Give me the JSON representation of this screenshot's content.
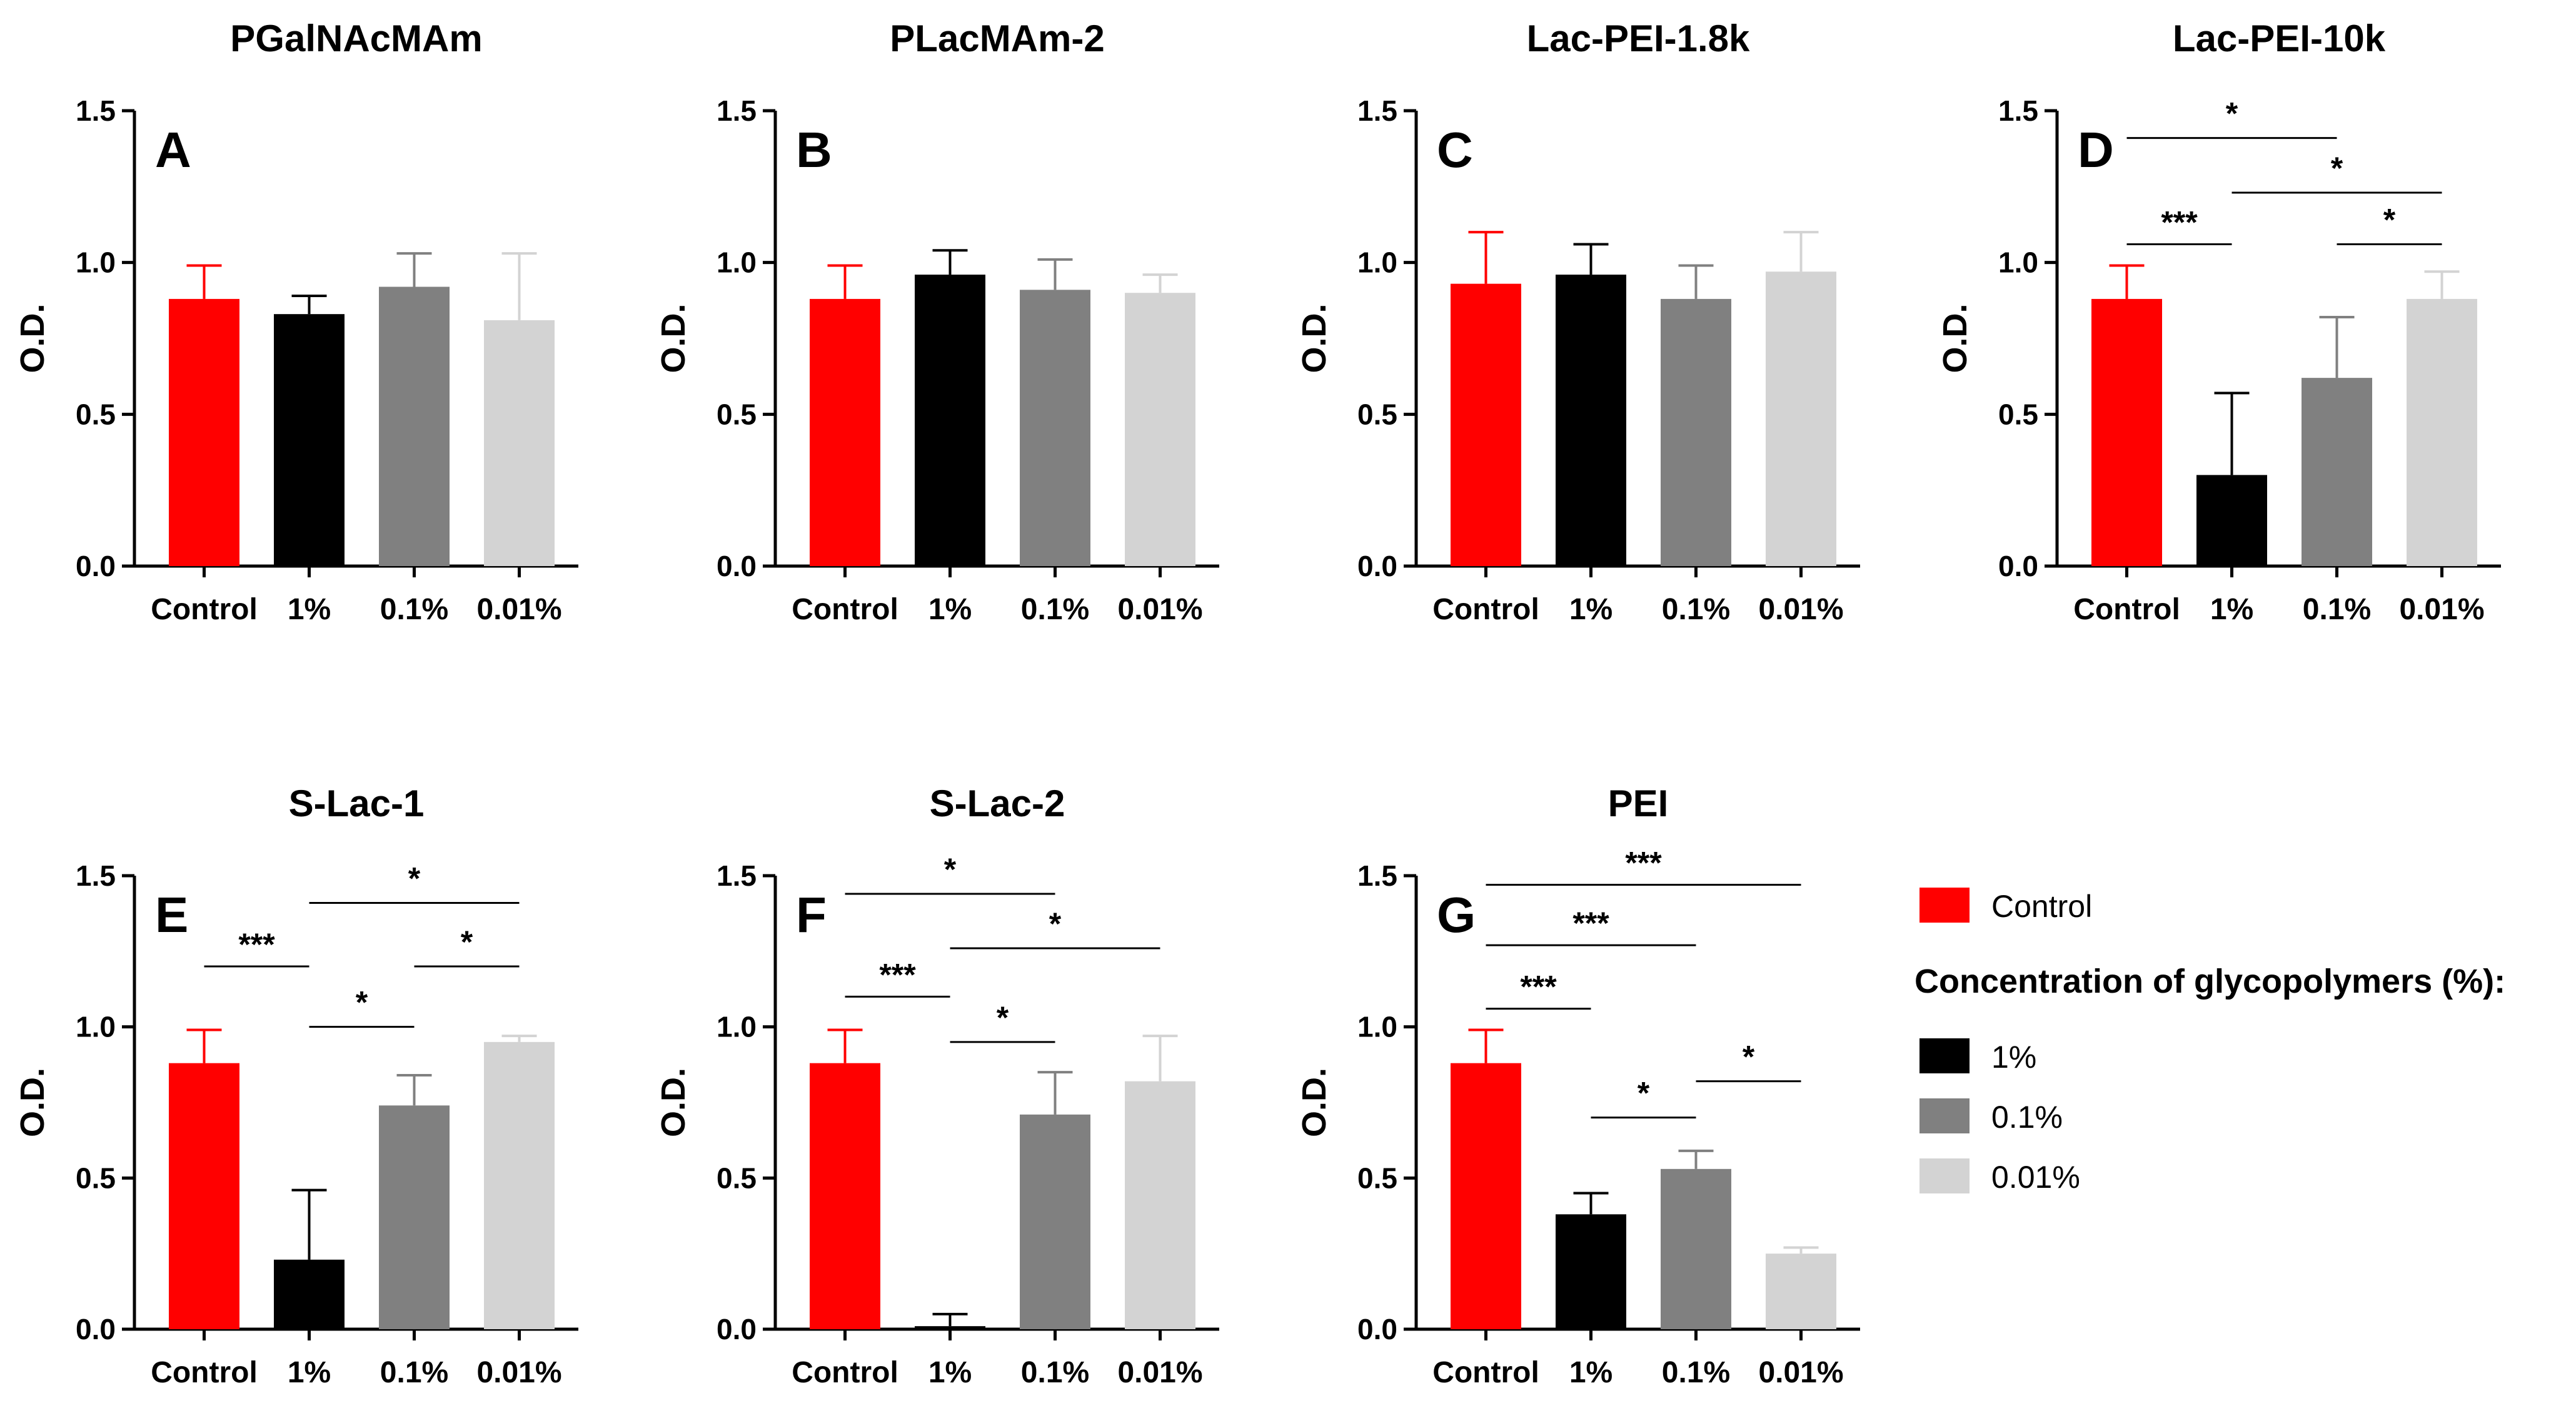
{
  "chart_data": [
    {
      "id": "A",
      "title": "PGalNAcMAm",
      "type": "bar",
      "categories": [
        "Control",
        "1%",
        "0.1%",
        "0.01%"
      ],
      "values": [
        0.88,
        0.83,
        0.92,
        0.81
      ],
      "errors": [
        0.11,
        0.06,
        0.11,
        0.22
      ],
      "ylabel": "O.D.",
      "ylim": [
        0,
        1.5
      ],
      "yticks": [
        "0.0",
        "0.5",
        "1.0",
        "1.5"
      ],
      "significance": []
    },
    {
      "id": "B",
      "title": "PLacMAm-2",
      "type": "bar",
      "categories": [
        "Control",
        "1%",
        "0.1%",
        "0.01%"
      ],
      "values": [
        0.88,
        0.96,
        0.91,
        0.9
      ],
      "errors": [
        0.11,
        0.08,
        0.1,
        0.06
      ],
      "ylabel": "O.D.",
      "ylim": [
        0,
        1.5
      ],
      "yticks": [
        "0.0",
        "0.5",
        "1.0",
        "1.5"
      ],
      "significance": []
    },
    {
      "id": "C",
      "title": "Lac-PEI-1.8k",
      "type": "bar",
      "categories": [
        "Control",
        "1%",
        "0.1%",
        "0.01%"
      ],
      "values": [
        0.93,
        0.96,
        0.88,
        0.97
      ],
      "errors": [
        0.17,
        0.1,
        0.11,
        0.13
      ],
      "ylabel": "O.D.",
      "ylim": [
        0,
        1.5
      ],
      "yticks": [
        "0.0",
        "0.5",
        "1.0",
        "1.5"
      ],
      "significance": []
    },
    {
      "id": "D",
      "title": "Lac-PEI-10k",
      "type": "bar",
      "categories": [
        "Control",
        "1%",
        "0.1%",
        "0.01%"
      ],
      "values": [
        0.88,
        0.3,
        0.62,
        0.88
      ],
      "errors": [
        0.11,
        0.27,
        0.2,
        0.09
      ],
      "ylabel": "O.D.",
      "ylim": [
        0,
        1.5
      ],
      "yticks": [
        "0.0",
        "0.5",
        "1.0",
        "1.5"
      ],
      "significance": [
        {
          "from": 0,
          "to": 2,
          "label": "*",
          "y": 1.41
        },
        {
          "from": 1,
          "to": 3,
          "label": "*",
          "y": 1.23
        },
        {
          "from": 0,
          "to": 1,
          "label": "***",
          "y": 1.06
        },
        {
          "from": 2,
          "to": 3,
          "label": "*",
          "y": 1.06
        }
      ]
    },
    {
      "id": "E",
      "title": "S-Lac-1",
      "type": "bar",
      "categories": [
        "Control",
        "1%",
        "0.1%",
        "0.01%"
      ],
      "values": [
        0.88,
        0.23,
        0.74,
        0.95
      ],
      "errors": [
        0.11,
        0.23,
        0.1,
        0.02
      ],
      "ylabel": "O.D.",
      "ylim": [
        0,
        1.5
      ],
      "yticks": [
        "0.0",
        "0.5",
        "1.0",
        "1.5"
      ],
      "significance": [
        {
          "from": 1,
          "to": 3,
          "label": "*",
          "y": 1.41
        },
        {
          "from": 0,
          "to": 1,
          "label": "***",
          "y": 1.2
        },
        {
          "from": 2,
          "to": 3,
          "label": "*",
          "y": 1.2
        },
        {
          "from": 1,
          "to": 2,
          "label": "*",
          "y": 1.0
        }
      ]
    },
    {
      "id": "F",
      "title": "S-Lac-2",
      "type": "bar",
      "categories": [
        "Control",
        "1%",
        "0.1%",
        "0.01%"
      ],
      "values": [
        0.88,
        0.01,
        0.71,
        0.82
      ],
      "errors": [
        0.11,
        0.04,
        0.14,
        0.15
      ],
      "ylabel": "O.D.",
      "ylim": [
        0,
        1.5
      ],
      "yticks": [
        "0.0",
        "0.5",
        "1.0",
        "1.5"
      ],
      "significance": [
        {
          "from": 0,
          "to": 2,
          "label": "*",
          "y": 1.44
        },
        {
          "from": 1,
          "to": 3,
          "label": "*",
          "y": 1.26
        },
        {
          "from": 0,
          "to": 1,
          "label": "***",
          "y": 1.1
        },
        {
          "from": 1,
          "to": 2,
          "label": "*",
          "y": 0.95
        }
      ]
    },
    {
      "id": "G",
      "title": "PEI",
      "type": "bar",
      "categories": [
        "Control",
        "1%",
        "0.1%",
        "0.01%"
      ],
      "values": [
        0.88,
        0.38,
        0.53,
        0.25
      ],
      "errors": [
        0.11,
        0.07,
        0.06,
        0.02
      ],
      "ylabel": "O.D.",
      "ylim": [
        0,
        1.5
      ],
      "yticks": [
        "0.0",
        "0.5",
        "1.0",
        "1.5"
      ],
      "significance": [
        {
          "from": 0,
          "to": 3,
          "label": "***",
          "y": 1.47
        },
        {
          "from": 0,
          "to": 2,
          "label": "***",
          "y": 1.27
        },
        {
          "from": 0,
          "to": 1,
          "label": "***",
          "y": 1.06
        },
        {
          "from": 2,
          "to": 3,
          "label": "*",
          "y": 0.82
        },
        {
          "from": 1,
          "to": 2,
          "label": "*",
          "y": 0.7
        }
      ]
    }
  ],
  "colors": {
    "control": "#ff0000",
    "pct_1": "#000000",
    "pct_0_1": "#808080",
    "pct_0_01": "#d3d3d3",
    "axis": "#000000"
  },
  "legend": {
    "control_label": "Control",
    "heading": "Concentration of glycopolymers (%):",
    "items": [
      {
        "label": "1%",
        "color": "#000000"
      },
      {
        "label": "0.1%",
        "color": "#808080"
      },
      {
        "label": "0.01%",
        "color": "#d3d3d3"
      }
    ]
  }
}
